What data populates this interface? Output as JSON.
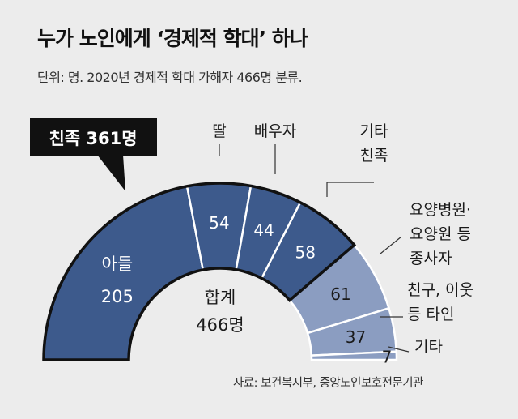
{
  "title": "누가 노인에게 ‘경제적 학대’ 하나",
  "subtitle": "단위: 명. 2020년 경제적 학대 가해자 466명 분류.",
  "source": "자료: 보건복지부, 중앙노인보호전문기관",
  "colors": {
    "background": "#ececec",
    "family": "#3d5a8c",
    "nonfamily": "#8b9dc1",
    "callout_bg": "#111111",
    "separator": "#ffffff"
  },
  "chart_data": {
    "type": "pie",
    "style": "semi-donut",
    "total": 466,
    "total_label": [
      "합계",
      "466명"
    ],
    "group_callout": "친족  361명",
    "slices": [
      {
        "label": [
          "아들"
        ],
        "value": 205,
        "group": "family"
      },
      {
        "label": [
          "딸"
        ],
        "value": 54,
        "group": "family"
      },
      {
        "label": [
          "배우자"
        ],
        "value": 44,
        "group": "family"
      },
      {
        "label": [
          "기타",
          "친족"
        ],
        "value": 58,
        "group": "family"
      },
      {
        "label": [
          "요양병원·",
          "요양원 등",
          "종사자"
        ],
        "value": 61,
        "group": "nonfamily"
      },
      {
        "label": [
          "친구, 이웃",
          "등 타인"
        ],
        "value": 37,
        "group": "nonfamily"
      },
      {
        "label": [
          "기타"
        ],
        "value": 7,
        "group": "nonfamily"
      }
    ]
  }
}
